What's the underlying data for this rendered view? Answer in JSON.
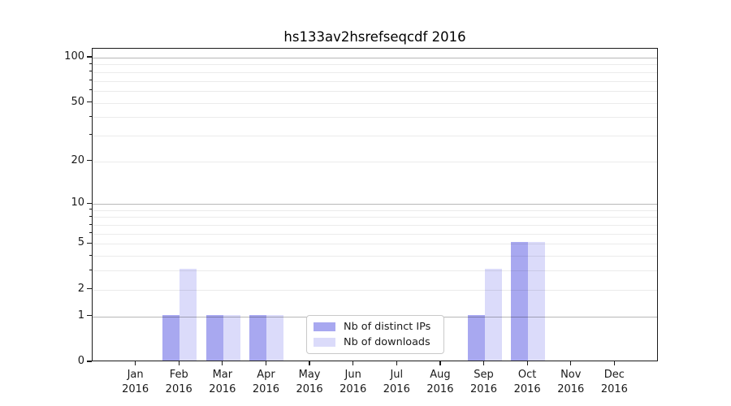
{
  "chart_data": {
    "type": "bar",
    "title": "hs133av2hsrefseqcdf 2016",
    "x": {
      "months": [
        "Jan",
        "Feb",
        "Mar",
        "Apr",
        "May",
        "Jun",
        "Jul",
        "Aug",
        "Sep",
        "Oct",
        "Nov",
        "Dec"
      ],
      "year": "2016"
    },
    "series": [
      {
        "name": "Nb of distinct IPs",
        "color": "#a8a8f0",
        "values": [
          0,
          1,
          1,
          1,
          0,
          0,
          0,
          0,
          1,
          5,
          0,
          0
        ]
      },
      {
        "name": "Nb of downloads",
        "color": "#dbdbfa",
        "values": [
          0,
          3,
          1,
          1,
          0,
          0,
          0,
          0,
          3,
          5,
          0,
          0
        ]
      }
    ],
    "yaxis": {
      "scale": "log1p",
      "labeled_ticks": [
        0,
        1,
        2,
        5,
        10,
        20,
        50,
        100
      ],
      "major_gridlines": [
        1,
        10,
        100
      ],
      "minor_gridlines": [
        2,
        3,
        4,
        5,
        6,
        7,
        8,
        9,
        20,
        30,
        40,
        50,
        60,
        70,
        80,
        90
      ],
      "top_tick_value": 100
    },
    "legend": {
      "position": "lower center"
    }
  },
  "colors": {
    "grid_major": "rgba(0,0,0,0.28)",
    "grid_minor": "rgba(0,0,0,0.08)",
    "axis": "#1a1a1a",
    "background": "#ffffff",
    "title_text": "#000000"
  }
}
